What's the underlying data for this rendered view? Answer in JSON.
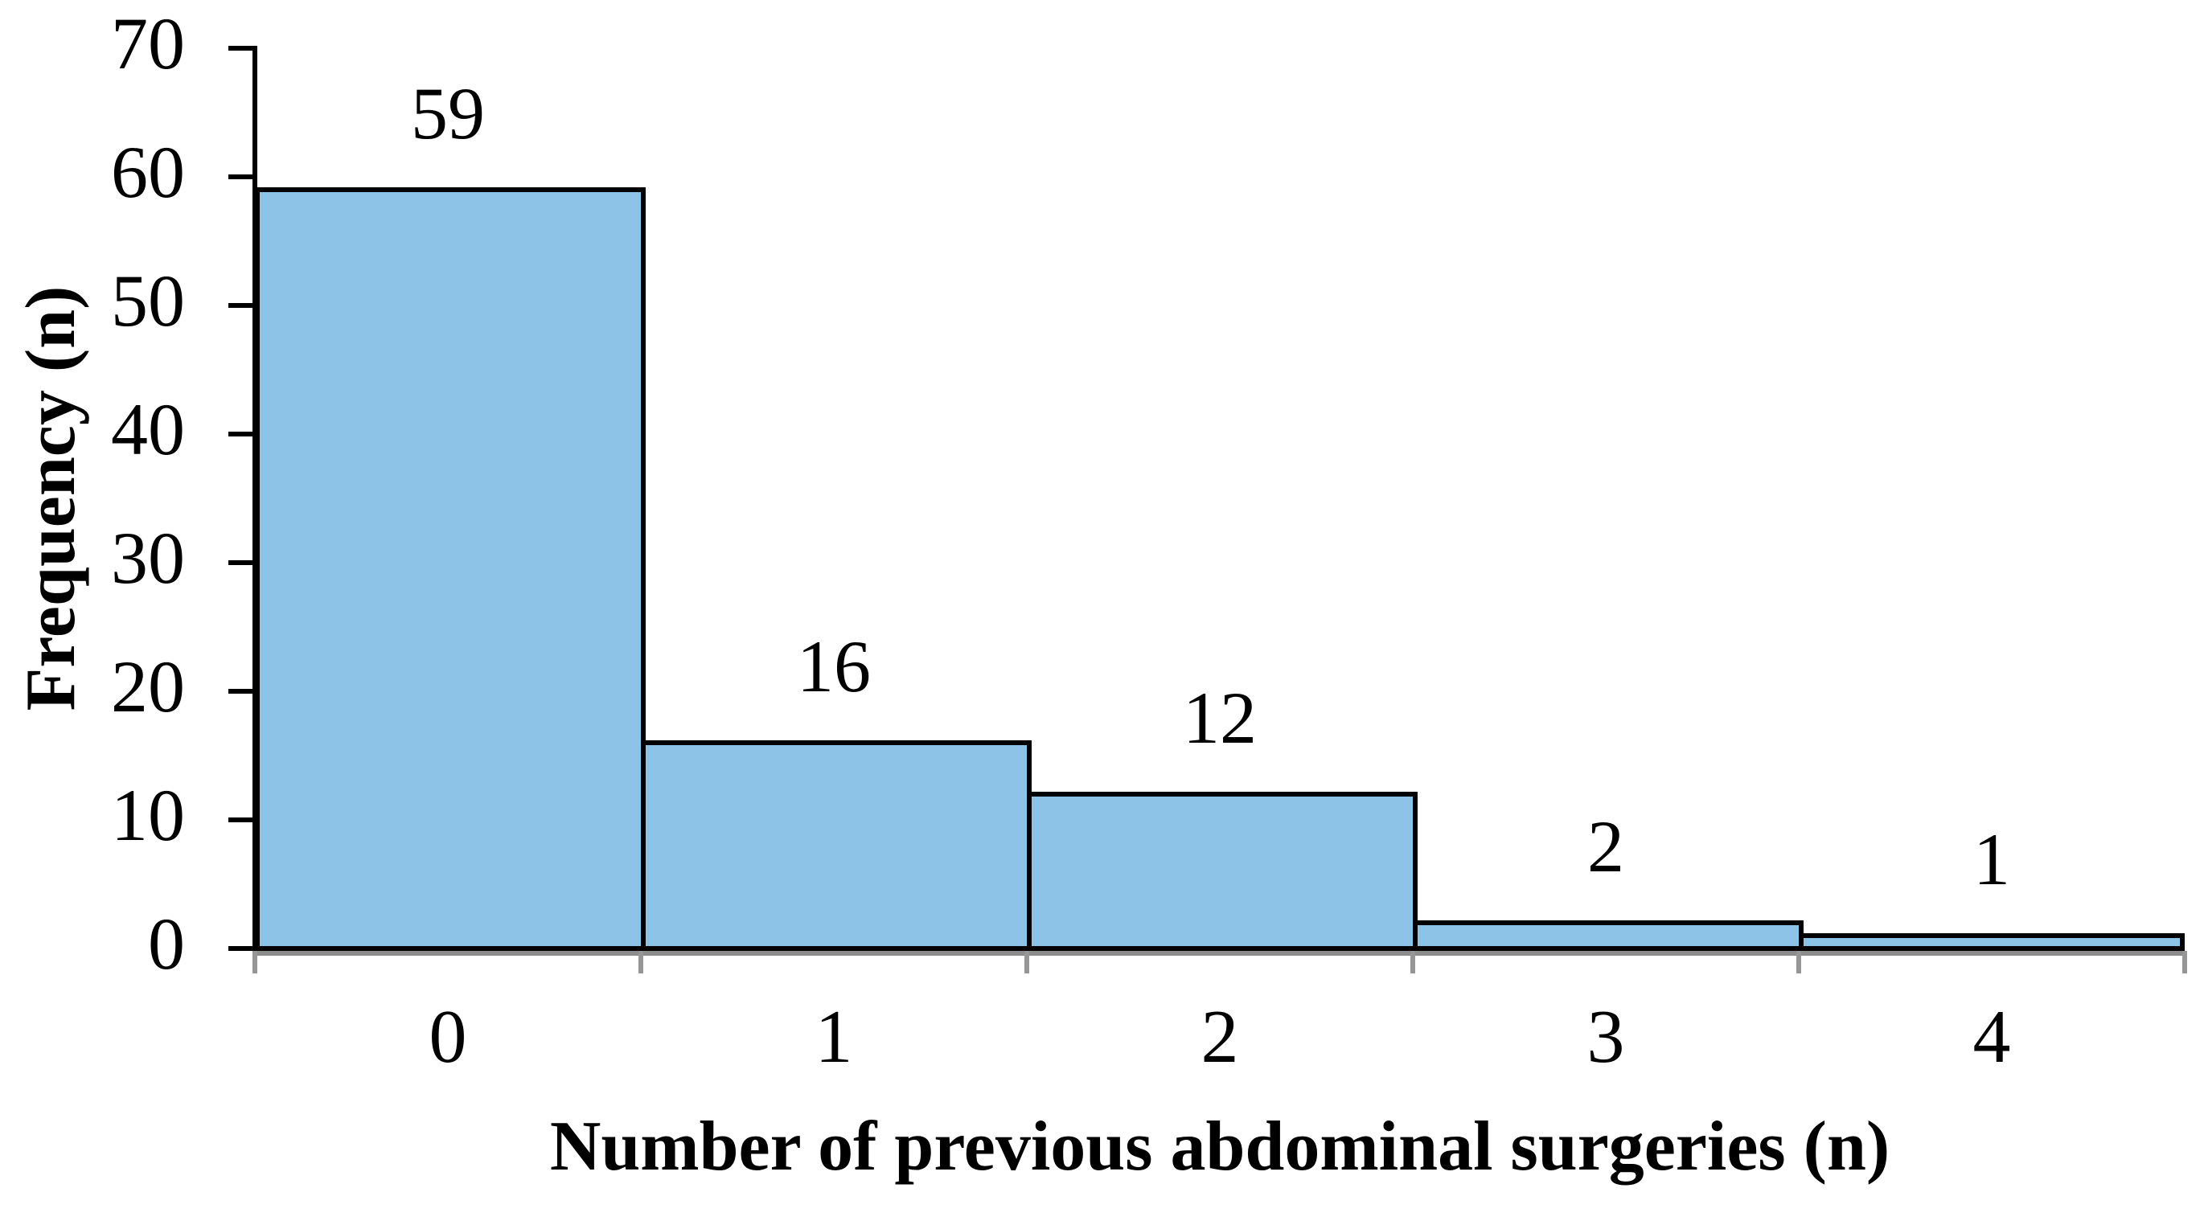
{
  "chart_data": {
    "type": "bar",
    "title": "",
    "categories": [
      "0",
      "1",
      "2",
      "3",
      "4"
    ],
    "values": [
      59,
      16,
      12,
      2,
      1
    ],
    "bar_labels": [
      "59",
      "16",
      "12",
      "2",
      "1"
    ],
    "xlabel": "Number of previous abdominal surgeries (n)",
    "ylabel": "Frequency (n)",
    "ylim": [
      0,
      70
    ],
    "yticks": [
      0,
      10,
      20,
      30,
      40,
      50,
      60,
      70
    ],
    "ytick_labels": [
      "0",
      "10",
      "20",
      "30",
      "40",
      "50",
      "60",
      "70"
    ],
    "grid": false,
    "legend": "none",
    "colors": {
      "bar_fill": "#8CC3E6",
      "bar_border": "#000000",
      "y_axis": "#000000",
      "x_axis_line_gray": "#8C8C8C",
      "x_axis_tick_gray": "#969696",
      "text": "#000000",
      "background": "#FFFFFF"
    }
  }
}
